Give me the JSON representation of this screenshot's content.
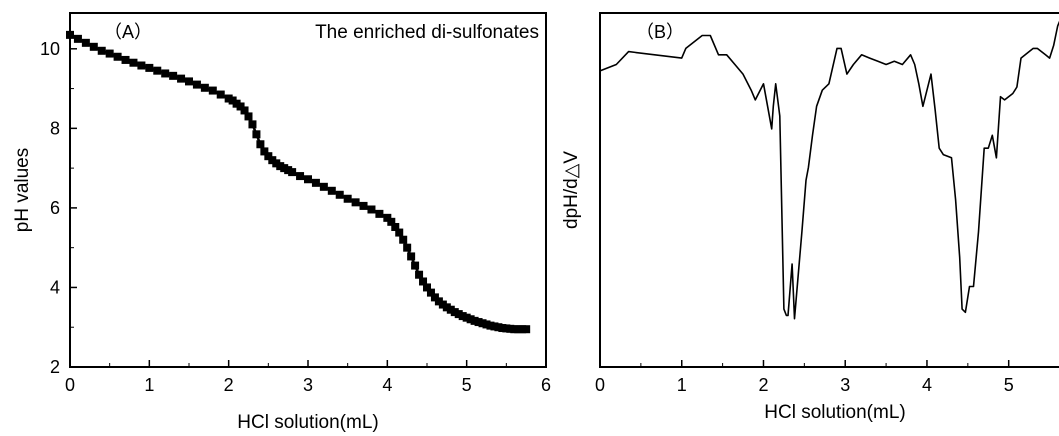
{
  "chart_data": [
    {
      "panel": "A",
      "type": "line",
      "panel_label": "（A）",
      "annotation": "The enriched di-sulfonates",
      "xlabel": "HCl  solution(mL)",
      "ylabel": "pH values",
      "xlim": [
        0,
        6
      ],
      "ylim": [
        2,
        10.9
      ],
      "xticks": [
        0,
        1,
        2,
        3,
        4,
        5,
        6
      ],
      "yticks": [
        2,
        4,
        6,
        8,
        10
      ],
      "marker": "square",
      "grid": false,
      "series": [
        {
          "x": [
            0,
            0.1,
            0.2,
            0.3,
            0.4,
            0.5,
            0.6,
            0.7,
            0.8,
            0.9,
            1.0,
            1.1,
            1.2,
            1.3,
            1.4,
            1.5,
            1.6,
            1.7,
            1.8,
            1.9,
            2.0,
            2.05,
            2.1,
            2.15,
            2.2,
            2.25,
            2.3,
            2.35,
            2.4,
            2.45,
            2.5,
            2.55,
            2.6,
            2.65,
            2.7,
            2.75,
            2.8,
            2.9,
            3.0,
            3.1,
            3.2,
            3.3,
            3.4,
            3.5,
            3.6,
            3.7,
            3.8,
            3.9,
            4.0,
            4.05,
            4.1,
            4.15,
            4.2,
            4.25,
            4.3,
            4.35,
            4.4,
            4.45,
            4.5,
            4.55,
            4.6,
            4.65,
            4.7,
            4.75,
            4.8,
            4.85,
            4.9,
            4.95,
            5.0,
            5.05,
            5.1,
            5.15,
            5.2,
            5.25,
            5.3,
            5.35,
            5.4,
            5.45,
            5.5,
            5.55,
            5.6,
            5.65,
            5.7,
            5.75
          ],
          "y": [
            10.35,
            10.25,
            10.15,
            10.05,
            9.95,
            9.88,
            9.8,
            9.72,
            9.65,
            9.58,
            9.52,
            9.45,
            9.38,
            9.32,
            9.25,
            9.18,
            9.1,
            9.02,
            8.95,
            8.85,
            8.75,
            8.7,
            8.62,
            8.55,
            8.45,
            8.3,
            8.1,
            7.85,
            7.6,
            7.42,
            7.3,
            7.2,
            7.12,
            7.05,
            7.0,
            6.95,
            6.9,
            6.8,
            6.72,
            6.63,
            6.53,
            6.43,
            6.33,
            6.23,
            6.14,
            6.05,
            5.96,
            5.85,
            5.75,
            5.65,
            5.52,
            5.38,
            5.2,
            5.0,
            4.78,
            4.55,
            4.32,
            4.15,
            4.0,
            3.87,
            3.75,
            3.65,
            3.57,
            3.5,
            3.44,
            3.38,
            3.33,
            3.28,
            3.24,
            3.2,
            3.16,
            3.13,
            3.1,
            3.07,
            3.04,
            3.02,
            3.0,
            2.98,
            2.97,
            2.96,
            2.95,
            2.95,
            2.95,
            2.95
          ]
        }
      ]
    },
    {
      "panel": "B",
      "type": "line",
      "panel_label": "（B）",
      "xlabel": "HCl  solution(mL)",
      "ylabel": "dpH/d△V",
      "xlim": [
        0,
        5.75
      ],
      "ylim": [
        -4.6,
        0.9
      ],
      "xticks": [
        0,
        1,
        2,
        3,
        4,
        5
      ],
      "yticks": [],
      "grid": false,
      "series": [
        {
          "x": [
            0,
            0.2,
            0.35,
            1.0,
            1.05,
            1.25,
            1.35,
            1.45,
            1.55,
            1.65,
            1.75,
            1.85,
            1.9,
            2.0,
            2.05,
            2.1,
            2.12,
            2.15,
            2.2,
            2.25,
            2.28,
            2.3,
            2.35,
            2.38,
            2.43,
            2.47,
            2.52,
            2.55,
            2.6,
            2.65,
            2.72,
            2.8,
            2.9,
            2.95,
            3.02,
            3.1,
            3.2,
            3.3,
            3.4,
            3.5,
            3.6,
            3.7,
            3.8,
            3.85,
            3.9,
            3.95,
            4.05,
            4.1,
            4.15,
            4.2,
            4.3,
            4.35,
            4.4,
            4.43,
            4.47,
            4.52,
            4.57,
            4.63,
            4.7,
            4.75,
            4.8,
            4.85,
            4.9,
            4.95,
            5.05,
            5.1,
            5.15,
            5.25,
            5.3,
            5.35,
            5.45,
            5.5,
            5.55,
            5.6,
            5.65,
            5.7,
            5.75
          ],
          "y": [
            0.0,
            0.1,
            0.3,
            0.2,
            0.35,
            0.55,
            0.55,
            0.25,
            0.25,
            0.1,
            -0.05,
            -0.3,
            -0.45,
            -0.2,
            -0.55,
            -0.9,
            -0.55,
            -0.2,
            -0.7,
            -3.7,
            -3.8,
            -3.8,
            -3.0,
            -3.85,
            -3.1,
            -2.5,
            -1.7,
            -1.5,
            -1.0,
            -0.55,
            -0.3,
            -0.2,
            0.35,
            0.35,
            -0.05,
            0.1,
            0.25,
            0.2,
            0.15,
            0.1,
            0.15,
            0.1,
            0.25,
            0.1,
            -0.2,
            -0.55,
            -0.05,
            -0.6,
            -1.2,
            -1.3,
            -1.35,
            -2.0,
            -2.9,
            -3.7,
            -3.75,
            -3.35,
            -3.35,
            -2.5,
            -1.2,
            -1.2,
            -1.0,
            -1.35,
            -0.4,
            -0.45,
            -0.35,
            -0.25,
            0.2,
            0.3,
            0.35,
            0.35,
            0.25,
            0.2,
            0.4,
            0.7,
            0.85,
            0.6,
            0.5
          ]
        }
      ]
    }
  ]
}
